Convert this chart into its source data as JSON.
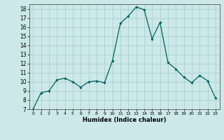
{
  "x": [
    0,
    1,
    2,
    3,
    4,
    5,
    6,
    7,
    8,
    9,
    10,
    11,
    12,
    13,
    14,
    15,
    16,
    17,
    18,
    19,
    20,
    21,
    22,
    23
  ],
  "y": [
    7.0,
    8.8,
    9.0,
    10.2,
    10.4,
    10.0,
    9.4,
    10.0,
    10.1,
    9.9,
    12.3,
    16.4,
    17.2,
    18.2,
    17.9,
    14.7,
    16.5,
    12.1,
    11.4,
    10.5,
    9.9,
    10.7,
    10.1,
    8.2
  ],
  "xlim": [
    -0.5,
    23.5
  ],
  "ylim": [
    7,
    18.5
  ],
  "yticks": [
    7,
    8,
    9,
    10,
    11,
    12,
    13,
    14,
    15,
    16,
    17,
    18
  ],
  "xticks": [
    0,
    1,
    2,
    3,
    4,
    5,
    6,
    7,
    8,
    9,
    10,
    11,
    12,
    13,
    14,
    15,
    16,
    17,
    18,
    19,
    20,
    21,
    22,
    23
  ],
  "xlabel": "Humidex (Indice chaleur)",
  "line_color": "#006060",
  "marker": "D",
  "marker_size": 1.8,
  "bg_color": "#cce8e8",
  "grid_color": "#aacfcf",
  "title": ""
}
